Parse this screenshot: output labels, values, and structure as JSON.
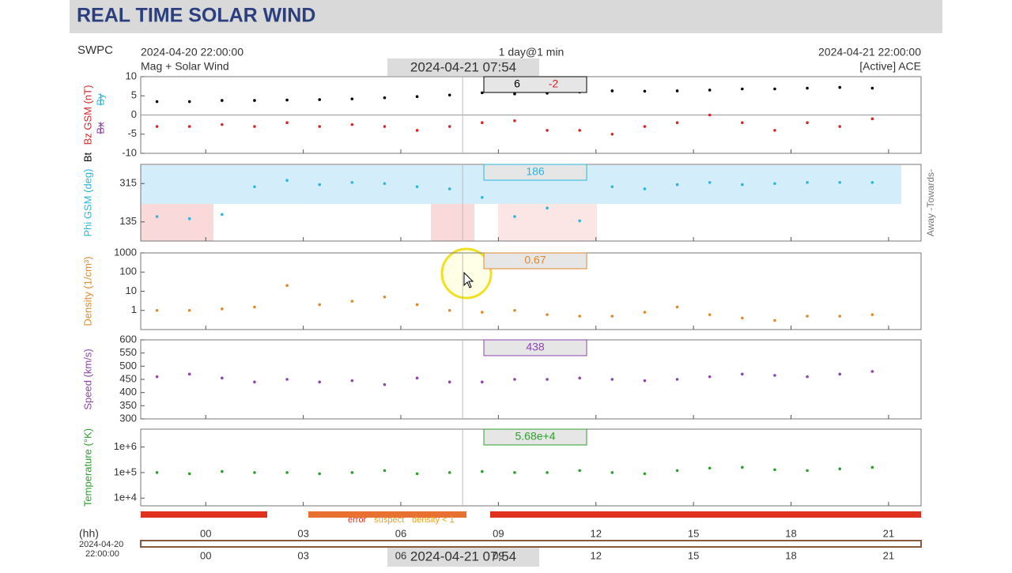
{
  "header": {
    "title": "REAL TIME SOLAR WIND"
  },
  "info": {
    "source": "SWPC",
    "start": "2024-04-20 22:00:00",
    "product": "Mag + Solar Wind",
    "resolution": "1 day@1 min",
    "end": "2024-04-21 22:00:00",
    "status": "[Active] ACE",
    "cursor_time": "2024-04-21 07:54"
  },
  "time_axis": {
    "unit": "(hh)",
    "start_date": "2024-04-20",
    "start_time": "22:00:00",
    "xlim": [
      -2,
      22
    ],
    "cursor": 7.9,
    "xticks": [
      {
        "value": 0,
        "label": "00"
      },
      {
        "value": 3,
        "label": "03"
      },
      {
        "value": 6,
        "label": "06"
      },
      {
        "value": 9,
        "label": "09"
      },
      12,
      15,
      18,
      21
    ]
  },
  "chart_data": [
    {
      "type": "scatter",
      "ylabel": "Bz GSM (nT)",
      "ylabel_color": "#d62728",
      "ylim": [
        -10,
        10
      ],
      "yticks": [
        -10,
        -5,
        0,
        5,
        10
      ],
      "zero_line": true,
      "toggles": [
        {
          "label": "By",
          "color": "#29b6e0"
        },
        {
          "label": "Bx",
          "color": "#8e44ad"
        }
      ],
      "readout": [
        "6",
        "-2"
      ],
      "x": [
        -1.5,
        -0.5,
        0.5,
        1.5,
        2.5,
        3.5,
        4.5,
        5.5,
        6.5,
        7.5,
        8.5,
        9.5,
        10.5,
        11.5,
        12.5,
        13.5,
        14.5,
        15.5,
        16.5,
        17.5,
        18.5,
        19.5,
        20.5
      ],
      "series": [
        {
          "name": "Bt",
          "color": "#000000",
          "values": [
            3.5,
            3.5,
            3.8,
            3.8,
            3.9,
            4.0,
            4.2,
            4.5,
            4.8,
            5.2,
            5.8,
            5.5,
            5.7,
            6.0,
            6.3,
            6.2,
            6.3,
            6.5,
            6.8,
            6.8,
            7.0,
            7.2,
            7.0
          ]
        },
        {
          "name": "Bz",
          "color": "#d62728",
          "values": [
            -3,
            -3,
            -2.5,
            -3,
            -2,
            -3,
            -2.5,
            -3,
            -4,
            -3,
            -2,
            -1.5,
            -4,
            -4,
            -5,
            -3,
            -2,
            0,
            -2,
            -4,
            -2,
            -3,
            -1
          ]
        }
      ]
    },
    {
      "type": "scatter",
      "ylabel": "Phi GSM (deg)",
      "ylabel_color": "#29b6e0",
      "ylim": [
        45,
        405
      ],
      "yticks": [
        135,
        315
      ],
      "side_label": "Away -Towards-",
      "readout": [
        "186"
      ],
      "x": [
        -1.5,
        -0.5,
        0.5,
        1.5,
        2.5,
        3.5,
        4.5,
        5.5,
        6.5,
        7.5,
        8.5,
        9.5,
        10.5,
        11.5,
        12.5,
        13.5,
        14.5,
        15.5,
        16.5,
        17.5,
        18.5,
        19.5,
        20.5
      ],
      "series": [
        {
          "name": "Phi",
          "color": "#29b6e0",
          "values": [
            160,
            150,
            170,
            300,
            330,
            310,
            320,
            315,
            300,
            290,
            250,
            160,
            200,
            140,
            300,
            290,
            310,
            320,
            310,
            315,
            320,
            320,
            320
          ]
        }
      ]
    },
    {
      "type": "scatter",
      "ylabel": "Density (1/cm³)",
      "ylabel_color": "#e08a2c",
      "log": true,
      "ylim": [
        0.1,
        1000
      ],
      "yticks": [
        1,
        10,
        100,
        1000
      ],
      "readout": [
        "0.67"
      ],
      "x": [
        -1.5,
        -0.5,
        0.5,
        1.5,
        2.5,
        3.5,
        4.5,
        5.5,
        6.5,
        7.5,
        8.5,
        9.5,
        10.5,
        11.5,
        12.5,
        13.5,
        14.5,
        15.5,
        16.5,
        17.5,
        18.5,
        19.5,
        20.5
      ],
      "series": [
        {
          "name": "Density",
          "color": "#e08a2c",
          "values": [
            1,
            1,
            1.2,
            1.5,
            20,
            2,
            3,
            5,
            2,
            1,
            0.8,
            1,
            0.6,
            0.5,
            0.5,
            0.8,
            1.5,
            0.6,
            0.4,
            0.3,
            0.5,
            0.5,
            0.6
          ]
        }
      ]
    },
    {
      "type": "scatter",
      "ylabel": "Speed (km/s)",
      "ylabel_color": "#8e44ad",
      "ylim": [
        300,
        600
      ],
      "yticks": [
        300,
        350,
        400,
        450,
        500,
        550,
        600
      ],
      "readout": [
        "438"
      ],
      "x": [
        -1.5,
        -0.5,
        0.5,
        1.5,
        2.5,
        3.5,
        4.5,
        5.5,
        6.5,
        7.5,
        8.5,
        9.5,
        10.5,
        11.5,
        12.5,
        13.5,
        14.5,
        15.5,
        16.5,
        17.5,
        18.5,
        19.5,
        20.5
      ],
      "series": [
        {
          "name": "Speed",
          "color": "#8e44ad",
          "values": [
            460,
            470,
            455,
            440,
            450,
            440,
            445,
            430,
            455,
            440,
            440,
            450,
            450,
            455,
            450,
            445,
            450,
            460,
            470,
            465,
            460,
            470,
            480
          ]
        }
      ]
    },
    {
      "type": "scatter",
      "ylabel": "Temperature (°K)",
      "ylabel_color": "#2ca02c",
      "log": true,
      "ylim": [
        5000,
        5000000
      ],
      "yticks": [
        {
          "value": 10000,
          "label": "1e+4"
        },
        {
          "value": 100000,
          "label": "1e+5"
        },
        {
          "value": 1000000,
          "label": "1e+6"
        }
      ],
      "readout": [
        "5.68e+4"
      ],
      "x": [
        -1.5,
        -0.5,
        0.5,
        1.5,
        2.5,
        3.5,
        4.5,
        5.5,
        6.5,
        7.5,
        8.5,
        9.5,
        10.5,
        11.5,
        12.5,
        13.5,
        14.5,
        15.5,
        16.5,
        17.5,
        18.5,
        19.5,
        20.5
      ],
      "series": [
        {
          "name": "Temperature",
          "color": "#2ca02c",
          "values": [
            100000,
            90000,
            110000,
            100000,
            100000,
            90000,
            100000,
            120000,
            90000,
            100000,
            110000,
            100000,
            100000,
            120000,
            100000,
            90000,
            120000,
            150000,
            160000,
            130000,
            120000,
            140000,
            160000
          ]
        }
      ]
    }
  ],
  "status_legend": [
    {
      "label": "error",
      "color": "#e03020"
    },
    {
      "label": "suspect",
      "color": "#e8a020"
    },
    {
      "label": "density < 1",
      "color": "#e8a020"
    }
  ]
}
